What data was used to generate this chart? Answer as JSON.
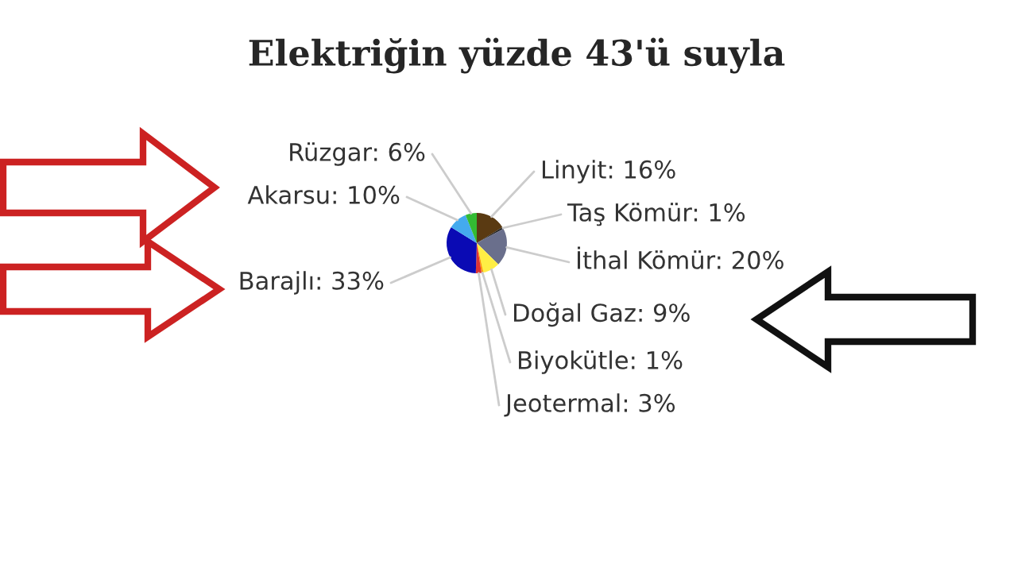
{
  "chart_data": {
    "type": "pie",
    "title": "Elektriğin yüzde 43'ü suyla",
    "categories": [
      "Linyit",
      "Taş Kömür",
      "İthal Kömür",
      "Doğal Gaz",
      "Biyokütle",
      "Jeotermal",
      "Barajlı",
      "Akarsu",
      "Rüzgar"
    ],
    "values": [
      16,
      1,
      20,
      9,
      1,
      3,
      33,
      10,
      6
    ],
    "value_labels": [
      "16%",
      "1%",
      "20%",
      "9%",
      "1%",
      "3%",
      "33%",
      "10%",
      "6%"
    ],
    "colors": [
      "#5a3a12",
      "#222222",
      "#6a6f8c",
      "#ffee44",
      "#ff9900",
      "#dd3333",
      "#0a0ab4",
      "#44aaee",
      "#33bb33"
    ]
  }
}
